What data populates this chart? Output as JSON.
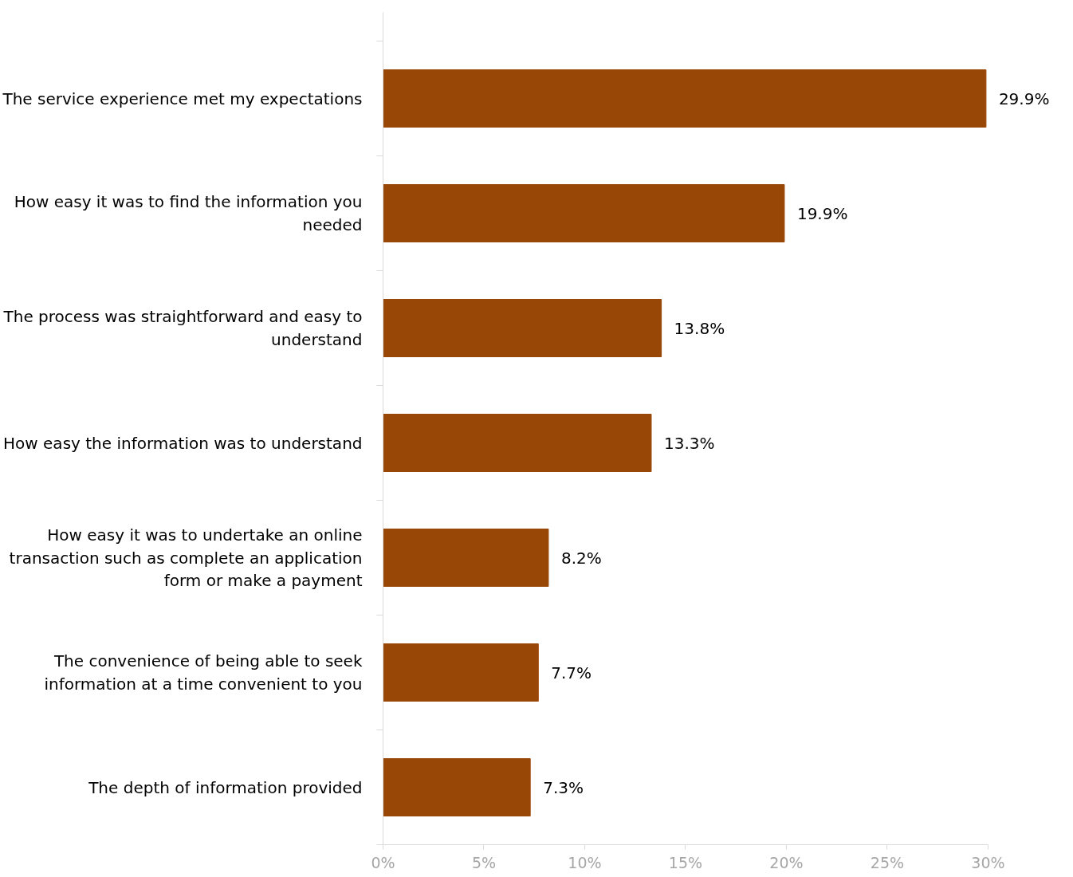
{
  "chart_data": {
    "type": "bar",
    "orientation": "horizontal",
    "categories": [
      "The service experience met my expectations",
      "How easy it was to find the information you needed",
      "The process was straightforward and easy to understand",
      "How easy the information was to understand",
      "How easy it was to undertake an online transaction such as complete an application form or make a payment",
      "The convenience of being able to seek information at a time convenient to you",
      "The depth of information provided"
    ],
    "values": [
      29.9,
      19.9,
      13.8,
      13.3,
      8.2,
      7.7,
      7.3
    ],
    "value_labels": [
      "29.9%",
      "19.9%",
      "13.8%",
      "13.3%",
      "8.2%",
      "7.7%",
      "7.3%"
    ],
    "color": "#994707",
    "xlim": [
      0,
      30
    ],
    "xticks": [
      {
        "value": 0,
        "label": "0%"
      },
      {
        "value": 5,
        "label": "5%"
      },
      {
        "value": 10,
        "label": "10%"
      },
      {
        "value": 15,
        "label": "15%"
      },
      {
        "value": 20,
        "label": "20%"
      },
      {
        "value": 25,
        "label": "25%"
      },
      {
        "value": 30,
        "label": "30%"
      }
    ],
    "grid": false
  }
}
